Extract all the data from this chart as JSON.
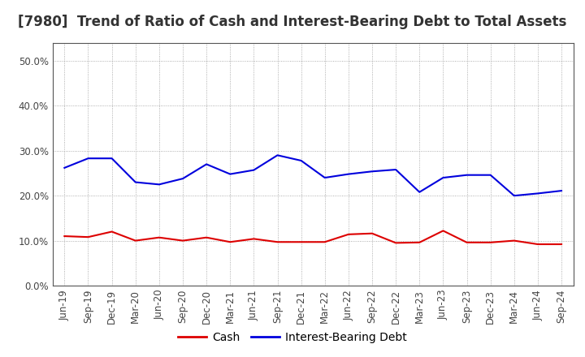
{
  "title": "[7980]  Trend of Ratio of Cash and Interest-Bearing Debt to Total Assets",
  "x_labels": [
    "Jun-19",
    "Sep-19",
    "Dec-19",
    "Mar-20",
    "Jun-20",
    "Sep-20",
    "Dec-20",
    "Mar-21",
    "Jun-21",
    "Sep-21",
    "Dec-21",
    "Mar-22",
    "Jun-22",
    "Sep-22",
    "Dec-22",
    "Mar-23",
    "Jun-23",
    "Sep-23",
    "Dec-23",
    "Mar-24",
    "Jun-24",
    "Sep-24"
  ],
  "cash": [
    0.11,
    0.108,
    0.12,
    0.1,
    0.107,
    0.1,
    0.107,
    0.097,
    0.104,
    0.097,
    0.097,
    0.097,
    0.114,
    0.116,
    0.095,
    0.096,
    0.122,
    0.096,
    0.096,
    0.1,
    0.092,
    0.092
  ],
  "ibd": [
    0.262,
    0.283,
    0.283,
    0.23,
    0.225,
    0.238,
    0.27,
    0.248,
    0.257,
    0.29,
    0.278,
    0.24,
    0.248,
    0.254,
    0.258,
    0.208,
    0.24,
    0.246,
    0.246,
    0.2,
    0.205,
    0.211
  ],
  "cash_color": "#dd0000",
  "ibd_color": "#0000dd",
  "background_color": "#ffffff",
  "grid_color": "#999999",
  "ylim": [
    0.0,
    0.54
  ],
  "yticks": [
    0.0,
    0.1,
    0.2,
    0.3,
    0.4,
    0.5
  ],
  "legend_cash": "Cash",
  "legend_ibd": "Interest-Bearing Debt",
  "title_fontsize": 12,
  "tick_fontsize": 8.5,
  "legend_fontsize": 10
}
